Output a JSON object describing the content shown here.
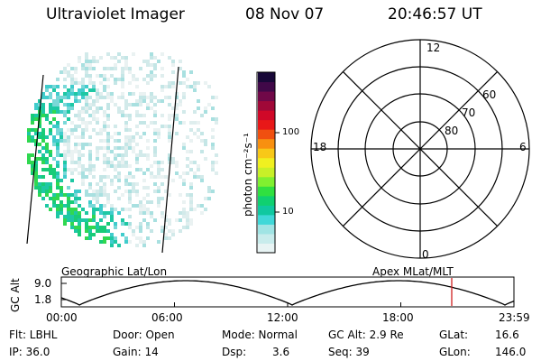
{
  "header": {
    "instrument": "Ultraviolet Imager",
    "date": "08 Nov 07",
    "time": "20:46:57 UT"
  },
  "colorbar": {
    "label": "photon cm⁻²s⁻¹",
    "tick_100": "100",
    "tick_10": "10",
    "colors": [
      "#e8f4f4",
      "#c8ecec",
      "#a0e4e4",
      "#40d8d8",
      "#10c8a0",
      "#10d070",
      "#30e040",
      "#80f030",
      "#c8f028",
      "#f0f020",
      "#f8c818",
      "#f89010",
      "#f05010",
      "#e81818",
      "#d00828",
      "#a00838",
      "#700848",
      "#400848",
      "#180838"
    ]
  },
  "left_panel": {
    "caption": "Geographic Lat/Lon"
  },
  "polar_plot": {
    "caption": "Apex MLat/MLT",
    "mlt_labels": {
      "top": "12",
      "left": "18",
      "right": "6",
      "bottom": "0"
    },
    "lat_labels": [
      "80",
      "70",
      "60"
    ]
  },
  "orbit_plot": {
    "ylabel": "GC Alt",
    "y_ticks": [
      "9.0",
      "1.8"
    ],
    "x_ticks": [
      "00:00",
      "06:00",
      "12:00",
      "18:00",
      "23:59"
    ],
    "marker_color": "#d02020"
  },
  "status": {
    "filter": "Flt: LBHL",
    "ip": "IP: 36.0",
    "door": "Door: Open",
    "gain": "Gain: 14",
    "mode": "Mode: Normal",
    "dsp_label": "Dsp:",
    "dsp_value": "3.6",
    "gc_alt": "GC Alt: 2.9 Re",
    "seq": "Seq: 39",
    "glat_label": "GLat:",
    "glat_value": "16.6",
    "glon_label": "GLon:",
    "glon_value": "146.0"
  }
}
